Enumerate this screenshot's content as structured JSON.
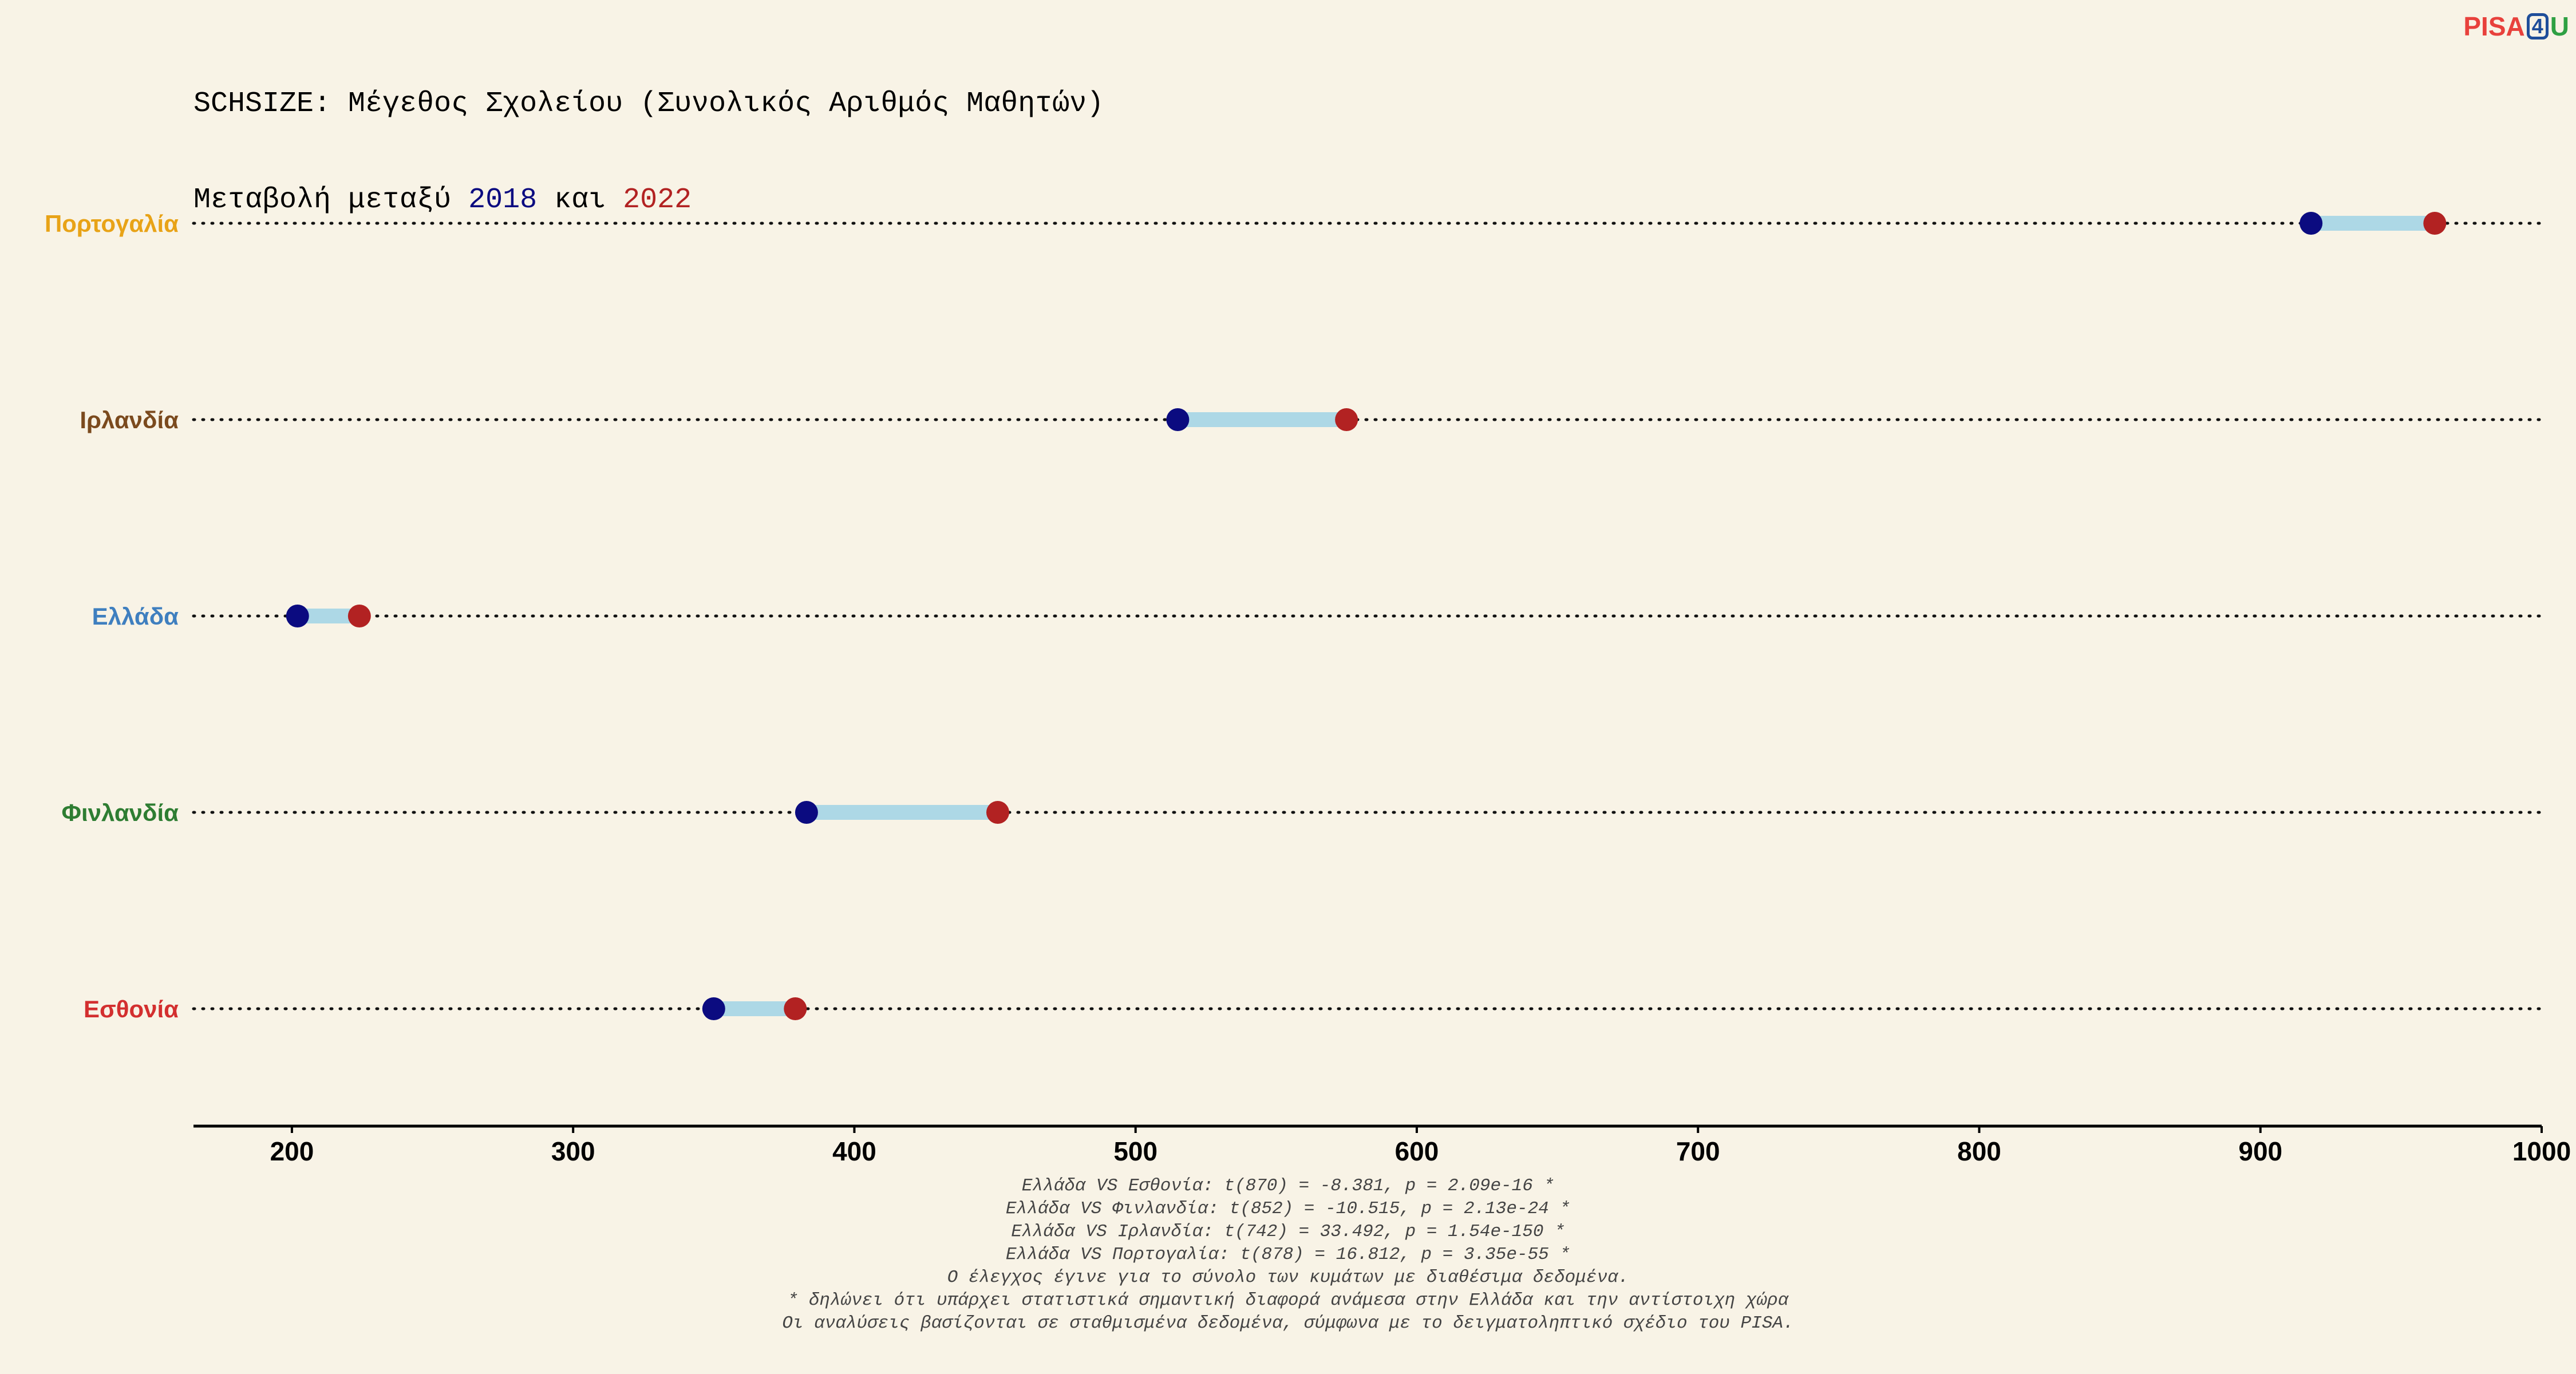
{
  "title": {
    "line1": "SCHSIZE: Μέγεθος Σχολείου (Συνολικός Αριθμός Μαθητών)",
    "line2_prefix": "Μεταβολή μεταξύ ",
    "year_a": "2018",
    "line2_mid": " και ",
    "year_b": "2022"
  },
  "logo": {
    "part1": "PISA",
    "part2": "4",
    "part3": "U"
  },
  "colors": {
    "background": "#f8f3e6",
    "point_2018": "#0b0b80",
    "point_2022": "#b22222",
    "connector": "#add8e6"
  },
  "chart_data": {
    "type": "dumbbell",
    "x_ticks": [
      200,
      300,
      400,
      500,
      600,
      700,
      800,
      900,
      1000
    ],
    "xlim": [
      165,
      1000
    ],
    "series": [
      {
        "name": "2018",
        "color": "#0b0b80"
      },
      {
        "name": "2022",
        "color": "#b22222"
      }
    ],
    "rows": [
      {
        "country": "Πορτογαλία",
        "label_color": "#e8a317",
        "v2018": 918,
        "v2022": 962
      },
      {
        "country": "Ιρλανδία",
        "label_color": "#7b4a1e",
        "v2018": 515,
        "v2022": 575
      },
      {
        "country": "Ελλάδα",
        "label_color": "#3f7fbf",
        "v2018": 202,
        "v2022": 224
      },
      {
        "country": "Φινλανδία",
        "label_color": "#2e7d32",
        "v2018": 383,
        "v2022": 451
      },
      {
        "country": "Εσθονία",
        "label_color": "#d32f2f",
        "v2018": 350,
        "v2022": 379
      }
    ]
  },
  "notes": [
    "Ελλάδα VS Εσθονία: t(870) = -8.381, p = 2.09e-16 *",
    "Ελλάδα VS Φινλανδία: t(852) = -10.515, p = 2.13e-24 *",
    "Ελλάδα VS Ιρλανδία: t(742) = 33.492, p = 1.54e-150 *",
    "Ελλάδα VS Πορτογαλία: t(878) = 16.812, p = 3.35e-55 *",
    "Ο έλεγχος έγινε για το σύνολο των κυμάτων με διαθέσιμα δεδομένα.",
    "* δηλώνει ότι υπάρχει στατιστικά σημαντική διαφορά ανάμεσα στην Ελλάδα και την αντίστοιχη χώρα",
    "Οι αναλύσεις βασίζονται σε σταθμισμένα δεδομένα, σύμφωνα με το δειγματοληπτικό σχέδιο του PISA."
  ]
}
